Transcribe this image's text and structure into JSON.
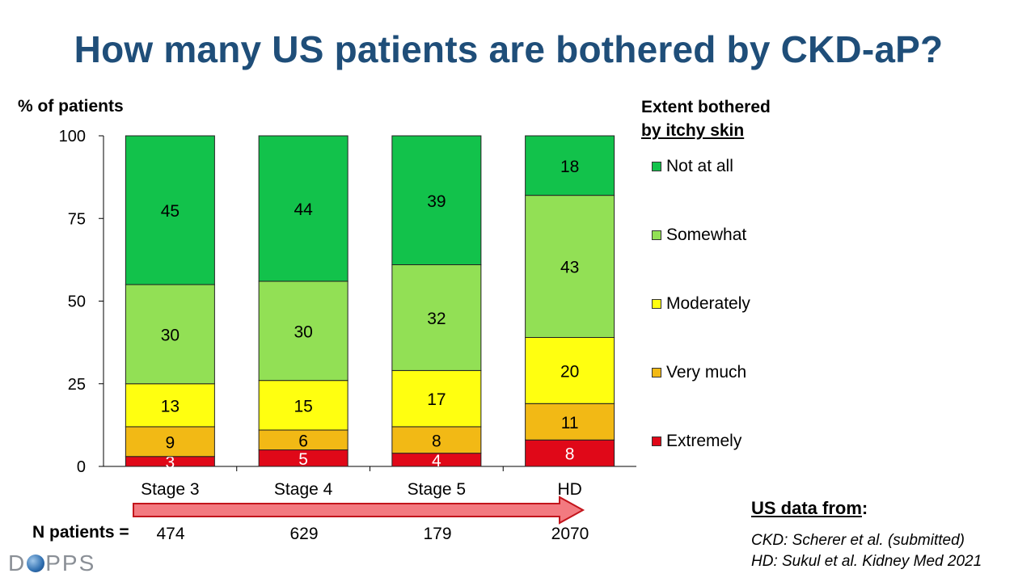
{
  "title": "How many US patients are bothered by CKD-aP?",
  "y_axis_label": "% of patients",
  "legend": {
    "title_line1": "Extent bothered",
    "title_line2": "by itchy skin",
    "items": [
      {
        "label": "Not at all",
        "color": "#12c24b"
      },
      {
        "label": "Somewhat",
        "color": "#92e055"
      },
      {
        "label": "Moderately",
        "color": "#ffff10"
      },
      {
        "label": "Very much",
        "color": "#f2b915"
      },
      {
        "label": "Extremely",
        "color": "#e00818"
      }
    ]
  },
  "chart_data": {
    "type": "bar",
    "stacked": true,
    "categories": [
      "Stage 3",
      "Stage 4",
      "Stage 5",
      "HD"
    ],
    "ylim": [
      0,
      100
    ],
    "yticks": [
      0,
      25,
      50,
      75,
      100
    ],
    "ylabel": "% of patients",
    "series": [
      {
        "name": "Extremely",
        "color": "#e00818",
        "values": [
          3,
          5,
          4,
          8
        ]
      },
      {
        "name": "Very much",
        "color": "#f2b915",
        "values": [
          9,
          6,
          8,
          11
        ]
      },
      {
        "name": "Moderately",
        "color": "#ffff10",
        "values": [
          13,
          15,
          17,
          20
        ]
      },
      {
        "name": "Somewhat",
        "color": "#92e055",
        "values": [
          30,
          30,
          32,
          43
        ]
      },
      {
        "name": "Not at all",
        "color": "#12c24b",
        "values": [
          45,
          44,
          39,
          18
        ]
      }
    ]
  },
  "n_patients": {
    "label": "N patients =",
    "values": [
      "474",
      "629",
      "179",
      "2070"
    ]
  },
  "sources": {
    "heading": "US data from",
    "heading_suffix": ":",
    "ckd": "CKD: Scherer et al. (submitted)",
    "hd": "HD: Sukul et al. Kidney Med 2021"
  },
  "logo": {
    "pre": "D",
    "post": "PPS"
  },
  "arrow_color": "#f37a80"
}
